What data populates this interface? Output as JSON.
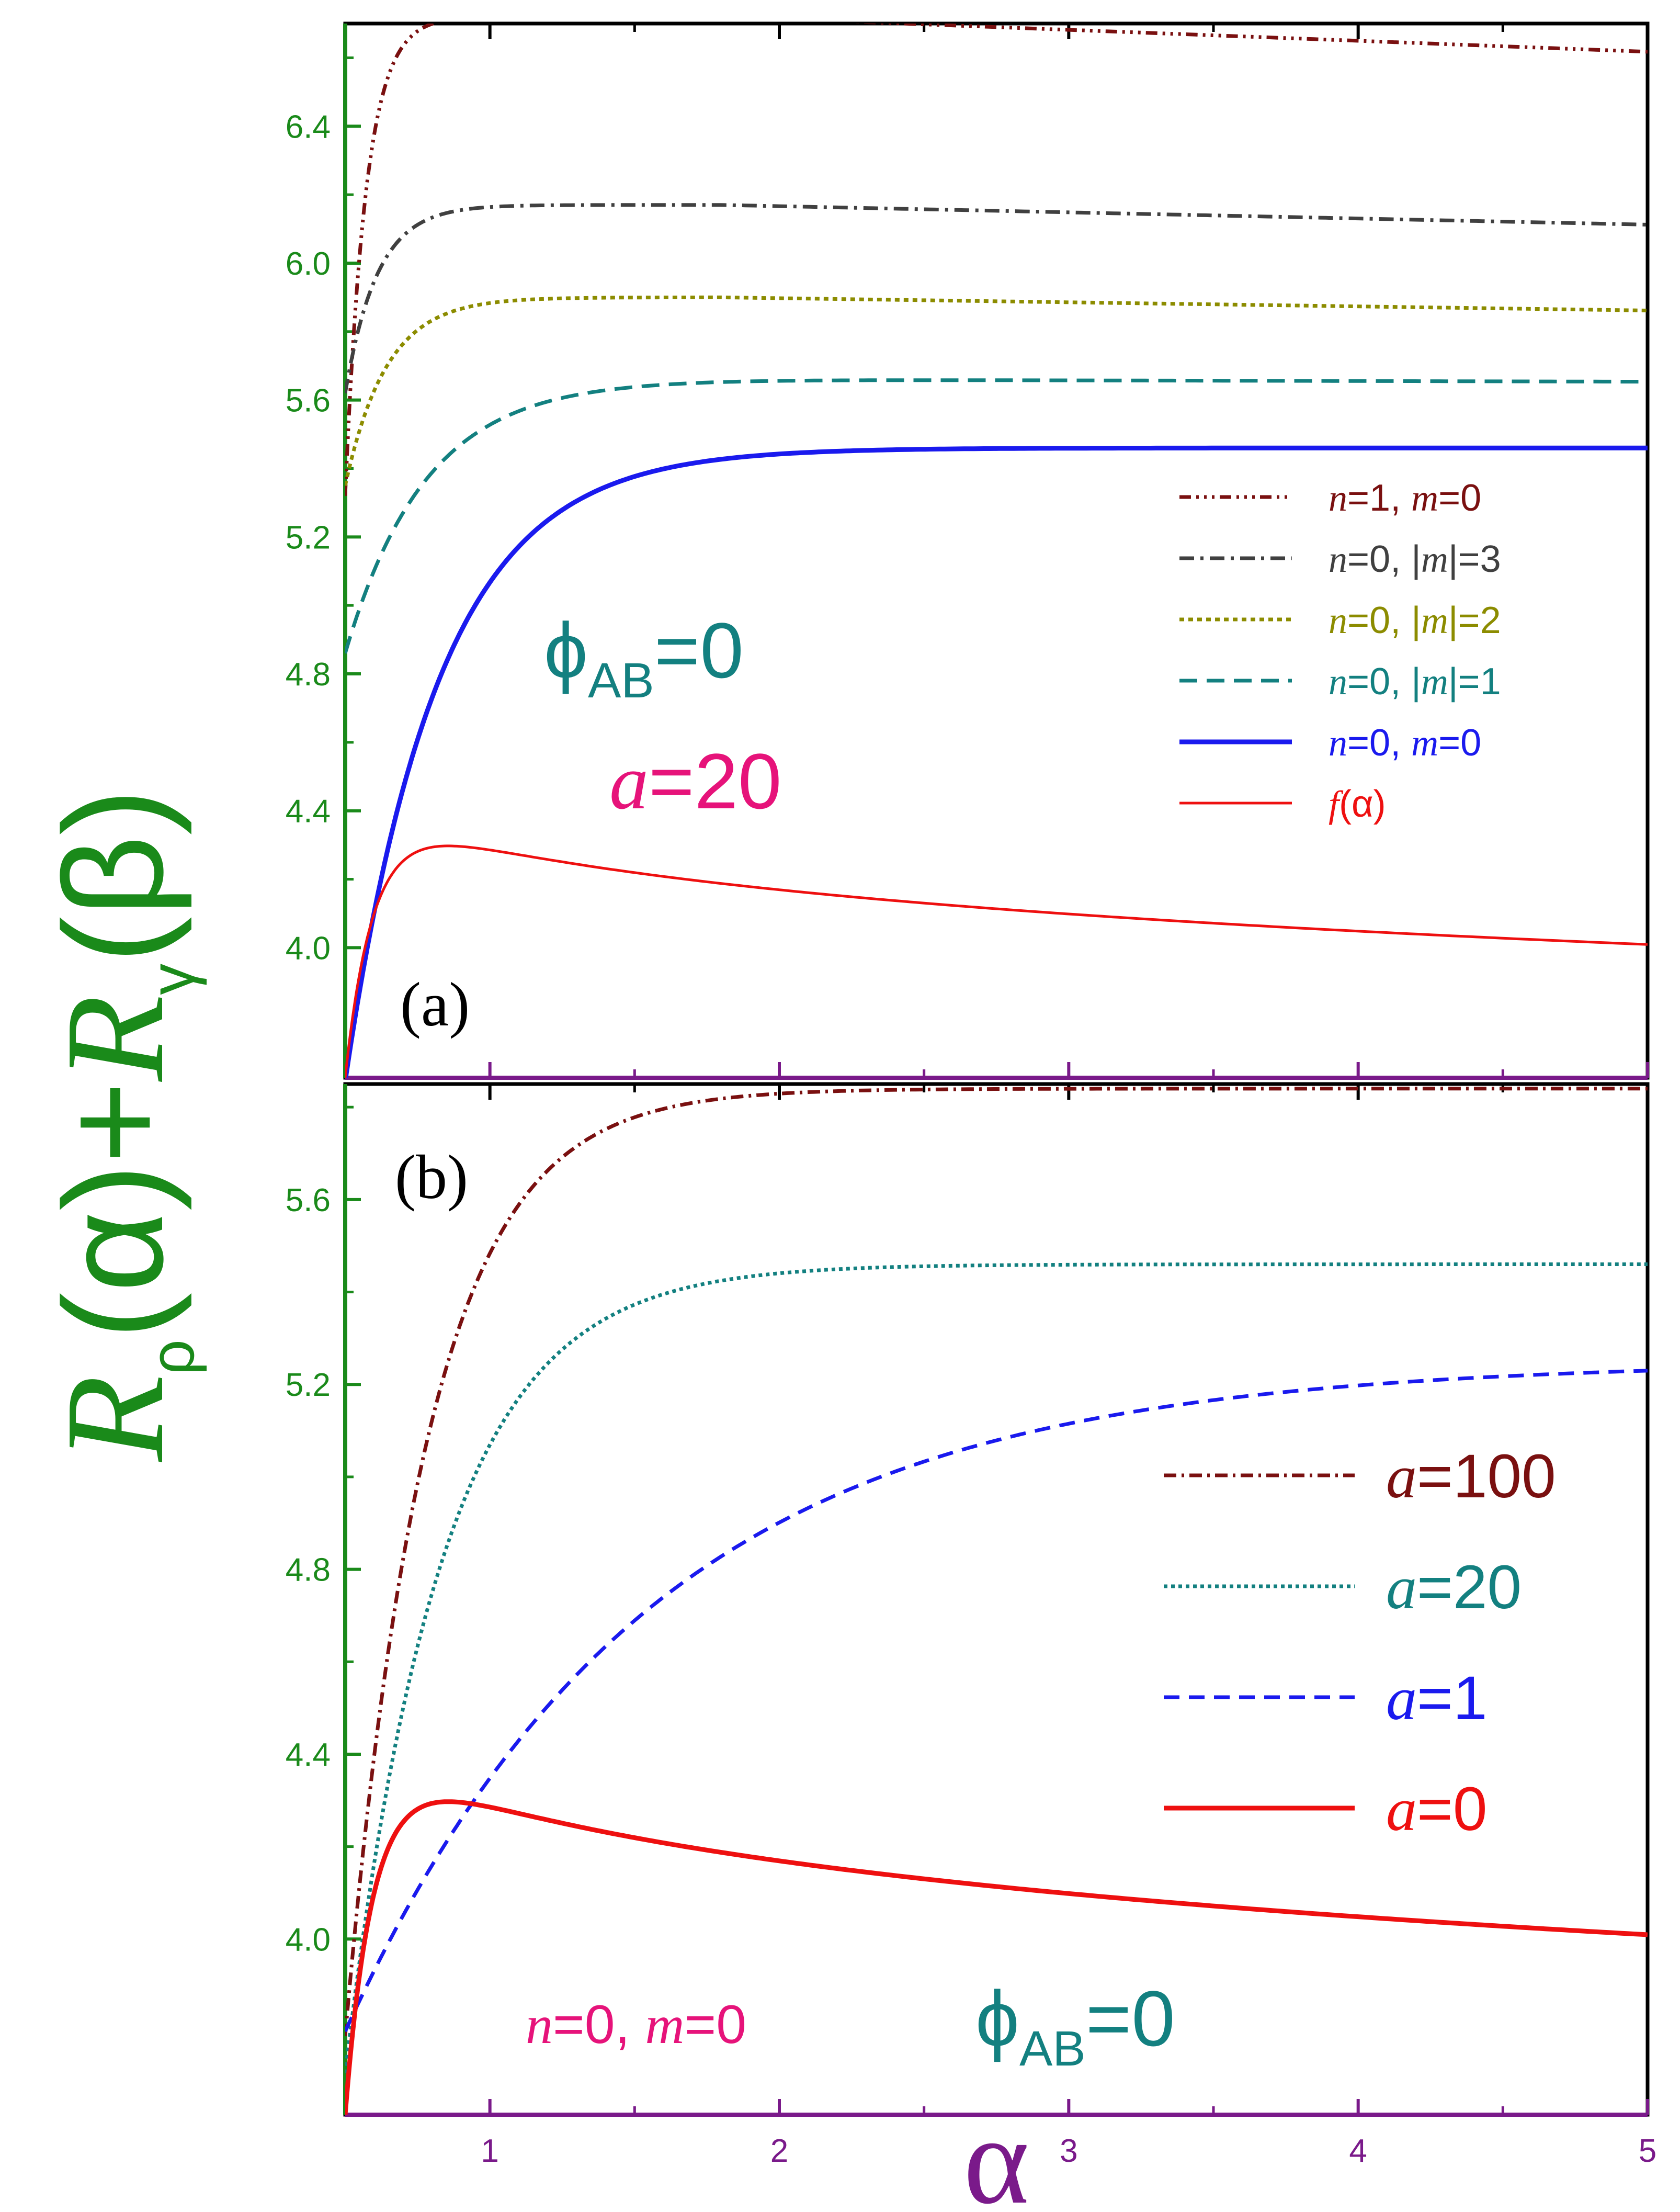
{
  "chart_data": [
    {
      "panel": "(a)",
      "type": "line",
      "xlim": [
        0.5,
        5.0
      ],
      "ylim": [
        3.62,
        6.7
      ],
      "yticks": [
        "4.0",
        "4.4",
        "4.8",
        "5.2",
        "5.6",
        "6.0",
        "6.4"
      ],
      "annotations": {
        "phi": "ϕ",
        "phi_sub": "AB",
        "phi_val": "=0",
        "a_text": "a",
        "a_val": "=20"
      },
      "series": [
        {
          "name": "n=1, m=0",
          "parts": [
            "n",
            "=1, ",
            "m",
            "=0"
          ],
          "color": "#7a1010",
          "dash": "22,10,5,10,5,10,5,10",
          "width": 7,
          "kind": "sat",
          "A": 6.72,
          "B": 1.4,
          "k": 14.0,
          "alpha0": 0.5,
          "decay": 0.032
        },
        {
          "name": "n=0, |m|=3",
          "parts": [
            "n",
            "=0, |",
            "m",
            "|=3"
          ],
          "color": "#404040",
          "dash": "28,12,6,12",
          "width": 7,
          "kind": "sat",
          "A": 6.17,
          "B": 0.55,
          "k": 9.0,
          "alpha0": 0.5,
          "decay": 0.018
        },
        {
          "name": "n=0, |m|=2",
          "parts": [
            "n",
            "=0, |",
            "m",
            "|=2"
          ],
          "color": "#8c8c00",
          "dash": "9,8",
          "width": 7,
          "kind": "sat",
          "A": 5.9,
          "B": 0.55,
          "k": 7.0,
          "alpha0": 0.5,
          "decay": 0.012
        },
        {
          "name": "n=0, |m|=1",
          "parts": [
            "n",
            "=0, |",
            "m",
            "|=1"
          ],
          "color": "#138080",
          "dash": "34,18",
          "width": 7,
          "kind": "sat",
          "A": 5.66,
          "B": 0.8,
          "k": 3.6,
          "alpha0": 0.5,
          "decay": 0.002
        },
        {
          "name": "n=0, m=0",
          "parts": [
            "n",
            "=0, ",
            "m",
            "=0"
          ],
          "color": "#1a1aee",
          "dash": "",
          "width": 9,
          "kind": "sat",
          "A": 5.46,
          "B": 1.85,
          "k": 3.1,
          "alpha0": 0.5,
          "decay": 0.0
        },
        {
          "name": "f(α)",
          "parts": [
            "f",
            "(α)",
            "",
            ""
          ],
          "color": "#ee1010",
          "dash": "",
          "width": 5,
          "kind": "f"
        }
      ]
    },
    {
      "panel": "(b)",
      "type": "line",
      "xlim": [
        0.5,
        5.0
      ],
      "ylim": [
        3.62,
        5.85
      ],
      "yticks": [
        "4.0",
        "4.4",
        "4.8",
        "5.2",
        "5.6"
      ],
      "xticks": [
        "1",
        "2",
        "3",
        "4",
        "5"
      ],
      "xlabel": "α",
      "annotations": {
        "nm": [
          "n",
          "=0, ",
          "m",
          "=0"
        ],
        "phi": "ϕ",
        "phi_sub": "AB",
        "phi_val": "=0"
      },
      "series": [
        {
          "name": "a=100",
          "parts": [
            "a",
            "=100"
          ],
          "color": "#7a1010",
          "dash": "24,10,5,10",
          "width": 7,
          "kind": "sat",
          "A": 5.84,
          "B": 2.05,
          "k": 3.5,
          "alpha0": 0.5,
          "decay": 0.0
        },
        {
          "name": "a=20",
          "parts": [
            "a",
            "=20"
          ],
          "color": "#138080",
          "dash": "7,7",
          "width": 7,
          "kind": "sat",
          "A": 5.46,
          "B": 1.75,
          "k": 3.0,
          "alpha0": 0.5,
          "decay": 0.0
        },
        {
          "name": "a=1",
          "parts": [
            "a",
            "=1"
          ],
          "color": "#1a1aee",
          "dash": "30,18",
          "width": 7,
          "kind": "sat",
          "A": 5.25,
          "B": 1.45,
          "k": 0.95,
          "alpha0": 0.5,
          "decay": 0.0
        },
        {
          "name": "a=0",
          "parts": [
            "a",
            "=0"
          ],
          "color": "#ee1010",
          "dash": "",
          "width": 9,
          "kind": "f"
        }
      ]
    }
  ],
  "ylabel_parts": [
    "R",
    "ρ",
    "(α)+",
    "R",
    "γ",
    "(β)"
  ],
  "colors": {
    "yaxis": "#1a8a1a",
    "xaxis": "#7a1a8a",
    "phi": "#138080",
    "a_ann": "#e6137a"
  }
}
